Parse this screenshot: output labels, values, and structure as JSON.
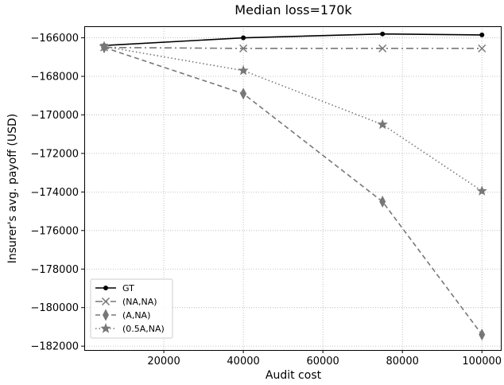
{
  "chart_data": {
    "type": "line",
    "title": "Median loss=170k",
    "xlabel": "Audit cost",
    "ylabel": "Insurer's avg. payoff (USD)",
    "xlim": [
      0,
      104750
    ],
    "ylim": [
      -182200,
      -165400
    ],
    "xticks": [
      20000,
      40000,
      60000,
      80000,
      100000
    ],
    "yticks": [
      -166000,
      -168000,
      -170000,
      -172000,
      -174000,
      -176000,
      -178000,
      -180000,
      -182000
    ],
    "grid": true,
    "legend_position": "lower-left",
    "x": [
      5000,
      40000,
      75000,
      100000
    ],
    "series": [
      {
        "name": "GT",
        "values": [
          -166400,
          -166000,
          -165800,
          -165850
        ],
        "color": "#000000",
        "dash": "solid",
        "marker": "dot"
      },
      {
        "name": "(NA,NA)",
        "values": [
          -166500,
          -166550,
          -166550,
          -166550
        ],
        "color": "#777777",
        "dash": "dashdot",
        "marker": "x"
      },
      {
        "name": "(A,NA)",
        "values": [
          -166500,
          -168900,
          -174500,
          -181400
        ],
        "color": "#777777",
        "dash": "dashed",
        "marker": "thin-diamond"
      },
      {
        "name": "(0.5A,NA)",
        "values": [
          -166450,
          -167700,
          -170500,
          -173950
        ],
        "color": "#777777",
        "dash": "dotted",
        "marker": "star"
      }
    ]
  }
}
